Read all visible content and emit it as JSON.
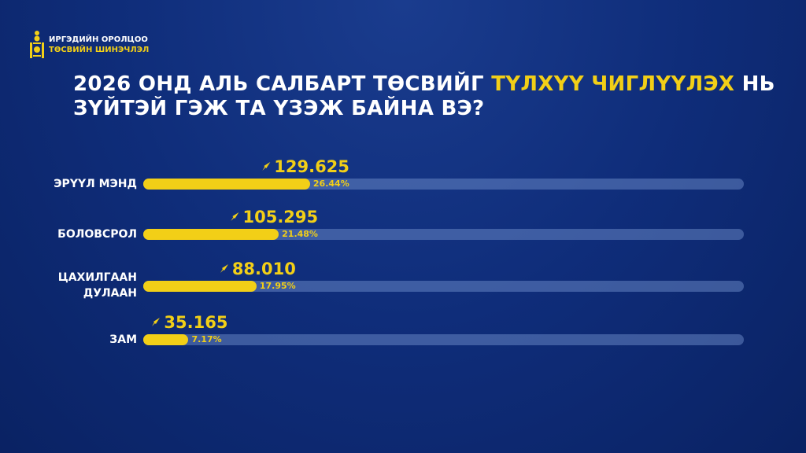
{
  "logo": {
    "line1": "ИРГЭДИЙН ОРОЛЦОО",
    "line2": "ТӨСВИЙН ШИНЭЧЛЭЛ"
  },
  "title": {
    "part1": "2026 ОНД АЛЬ САЛБАРТ ТӨСВИЙГ ",
    "highlight": "ТҮЛХҮҮ ЧИГЛҮҮЛЭХ",
    "part2": " НЬ",
    "line2": "ЗҮЙТЭЙ ГЭЖ ТА ҮЗЭЖ БАЙНА ВЭ?"
  },
  "colors": {
    "accent": "#f2cf17",
    "background": "#0f2d7a"
  },
  "chart_data": {
    "type": "bar",
    "orientation": "horizontal",
    "categories": [
      "ЭРҮҮЛ МЭНД",
      "БОЛОВСРОЛ",
      "ЦАХИЛГААН ДУЛААН",
      "ЗАМ"
    ],
    "values": [
      "129.625",
      "105.295",
      "88.010",
      "35.165"
    ],
    "percentages": [
      26.44,
      21.48,
      17.95,
      7.17
    ],
    "percent_labels": [
      "26.44%",
      "21.48%",
      "17.95%",
      "7.17%"
    ]
  }
}
